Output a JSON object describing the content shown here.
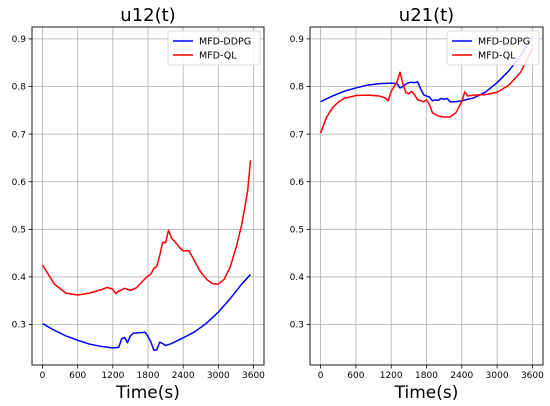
{
  "chart_data": [
    {
      "type": "line",
      "title": "u12(t)",
      "xlabel": "Time(s)",
      "ylabel": "",
      "xlim": [
        -180,
        3780
      ],
      "ylim": [
        0.215,
        0.925
      ],
      "xticks": [
        0,
        600,
        1200,
        1800,
        2400,
        3000,
        3600
      ],
      "yticks": [
        0.3,
        0.4,
        0.5,
        0.6,
        0.7,
        0.8,
        0.9
      ],
      "grid": true,
      "legend": "top-right",
      "series": [
        {
          "name": "MFD-DDPG",
          "color": "#0000ff",
          "x": [
            0,
            200,
            400,
            600,
            800,
            1000,
            1200,
            1300,
            1350,
            1400,
            1450,
            1500,
            1550,
            1600,
            1650,
            1700,
            1750,
            1800,
            1850,
            1900,
            1950,
            2000,
            2050,
            2100,
            2200,
            2300,
            2400,
            2600,
            2800,
            3000,
            3200,
            3400,
            3550
          ],
          "y": [
            0.302,
            0.288,
            0.276,
            0.267,
            0.259,
            0.254,
            0.251,
            0.252,
            0.27,
            0.273,
            0.262,
            0.276,
            0.282,
            0.282,
            0.283,
            0.283,
            0.284,
            0.275,
            0.263,
            0.246,
            0.247,
            0.263,
            0.26,
            0.256,
            0.26,
            0.266,
            0.272,
            0.285,
            0.303,
            0.326,
            0.354,
            0.385,
            0.405
          ]
        },
        {
          "name": "MFD-QL",
          "color": "#ff0000",
          "x": [
            0,
            200,
            400,
            600,
            800,
            1000,
            1100,
            1200,
            1250,
            1300,
            1350,
            1400,
            1500,
            1600,
            1700,
            1800,
            1850,
            1900,
            1950,
            2000,
            2050,
            2100,
            2150,
            2200,
            2250,
            2300,
            2350,
            2400,
            2500,
            2600,
            2700,
            2800,
            2900,
            3000,
            3100,
            3200,
            3300,
            3400,
            3500,
            3550
          ],
          "y": [
            0.425,
            0.385,
            0.366,
            0.362,
            0.366,
            0.373,
            0.378,
            0.374,
            0.365,
            0.37,
            0.373,
            0.376,
            0.372,
            0.377,
            0.39,
            0.402,
            0.406,
            0.418,
            0.422,
            0.445,
            0.473,
            0.472,
            0.498,
            0.482,
            0.475,
            0.468,
            0.46,
            0.455,
            0.455,
            0.432,
            0.41,
            0.395,
            0.386,
            0.385,
            0.395,
            0.42,
            0.46,
            0.51,
            0.58,
            0.645
          ]
        }
      ]
    },
    {
      "type": "line",
      "title": "u21(t)",
      "xlabel": "Time(s)",
      "ylabel": "",
      "xlim": [
        -180,
        3780
      ],
      "ylim": [
        0.215,
        0.925
      ],
      "xticks": [
        0,
        600,
        1200,
        1800,
        2400,
        3000,
        3600
      ],
      "yticks": [
        0.3,
        0.4,
        0.5,
        0.6,
        0.7,
        0.8,
        0.9
      ],
      "grid": true,
      "legend": "top-right",
      "series": [
        {
          "name": "MFD-DDPG",
          "color": "#0000ff",
          "x": [
            0,
            200,
            400,
            600,
            800,
            1000,
            1200,
            1300,
            1350,
            1400,
            1450,
            1500,
            1550,
            1600,
            1650,
            1700,
            1750,
            1800,
            1850,
            1900,
            1950,
            2000,
            2050,
            2100,
            2150,
            2200,
            2300,
            2400,
            2600,
            2800,
            3000,
            3200,
            3400,
            3600
          ],
          "y": [
            0.768,
            0.78,
            0.79,
            0.797,
            0.803,
            0.806,
            0.807,
            0.806,
            0.797,
            0.8,
            0.805,
            0.808,
            0.809,
            0.808,
            0.81,
            0.795,
            0.783,
            0.78,
            0.778,
            0.77,
            0.772,
            0.771,
            0.775,
            0.773,
            0.775,
            0.768,
            0.768,
            0.77,
            0.776,
            0.788,
            0.808,
            0.833,
            0.865,
            0.905
          ]
        },
        {
          "name": "MFD-QL",
          "color": "#ff0000",
          "x": [
            0,
            100,
            200,
            300,
            400,
            600,
            800,
            1000,
            1100,
            1150,
            1200,
            1250,
            1300,
            1350,
            1400,
            1450,
            1500,
            1550,
            1600,
            1650,
            1700,
            1750,
            1800,
            1850,
            1900,
            2000,
            2100,
            2200,
            2300,
            2400,
            2450,
            2500,
            2600,
            2800,
            3000,
            3200,
            3400,
            3600
          ],
          "y": [
            0.702,
            0.735,
            0.755,
            0.767,
            0.775,
            0.781,
            0.782,
            0.78,
            0.776,
            0.77,
            0.79,
            0.8,
            0.81,
            0.83,
            0.805,
            0.787,
            0.785,
            0.79,
            0.782,
            0.772,
            0.77,
            0.768,
            0.772,
            0.762,
            0.745,
            0.738,
            0.736,
            0.736,
            0.745,
            0.768,
            0.789,
            0.78,
            0.782,
            0.783,
            0.788,
            0.803,
            0.83,
            0.88
          ]
        }
      ]
    }
  ]
}
